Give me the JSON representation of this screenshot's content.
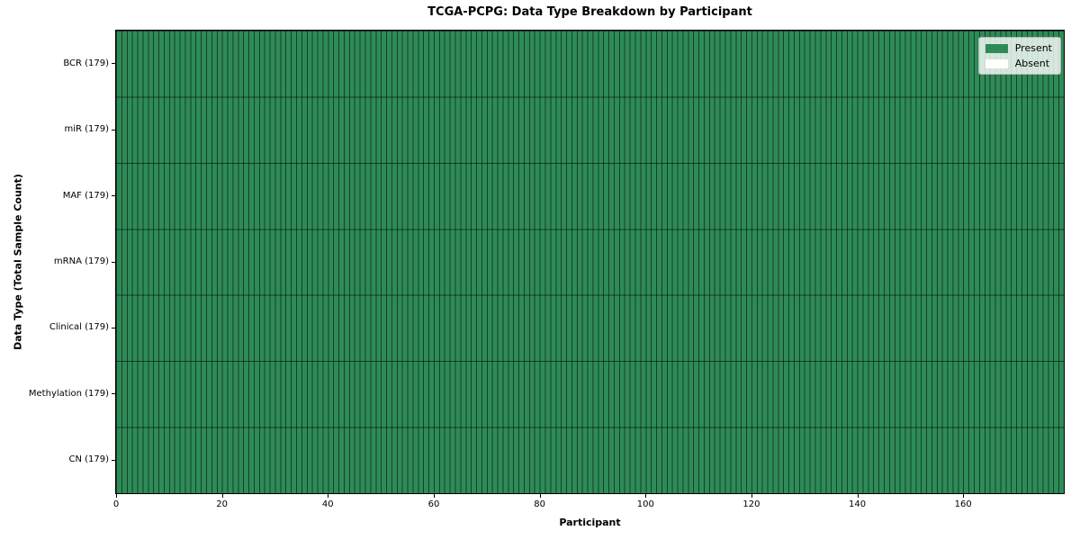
{
  "chart_data": {
    "type": "heatmap",
    "title": "TCGA-PCPG: Data Type Breakdown by Participant",
    "xlabel": "Participant",
    "ylabel": "Data Type (Total Sample Count)",
    "n_participants": 179,
    "x_range": [
      0,
      179
    ],
    "x_ticks": [
      0,
      20,
      40,
      60,
      80,
      100,
      120,
      140,
      160
    ],
    "rows": [
      {
        "label": "BCR (179)",
        "total_samples": 179,
        "present": 179,
        "absent": 0
      },
      {
        "label": "miR (179)",
        "total_samples": 179,
        "present": 179,
        "absent": 0
      },
      {
        "label": "MAF (179)",
        "total_samples": 179,
        "present": 179,
        "absent": 0
      },
      {
        "label": "mRNA (179)",
        "total_samples": 179,
        "present": 179,
        "absent": 0
      },
      {
        "label": "Clinical (179)",
        "total_samples": 179,
        "present": 179,
        "absent": 0
      },
      {
        "label": "Methylation (179)",
        "total_samples": 179,
        "present": 179,
        "absent": 0
      },
      {
        "label": "CN (179)",
        "total_samples": 179,
        "present": 179,
        "absent": 0
      }
    ],
    "cells": "All 7 rows x 179 participant columns are Present (green); no Absent cells visible",
    "legend": {
      "position": "upper right",
      "entries": [
        {
          "label": "Present",
          "color": "#2e8b57"
        },
        {
          "label": "Absent",
          "color": "#ffffff"
        }
      ]
    },
    "colors": {
      "present": "#2e8b57",
      "absent": "#ffffff",
      "cell_border": "rgba(0,0,0,0.55)",
      "spine": "#000000",
      "background": "#ffffff"
    },
    "layout": {
      "grid": "per-cell borders",
      "tick_label_fontsize": 10,
      "title_bold": true
    }
  }
}
